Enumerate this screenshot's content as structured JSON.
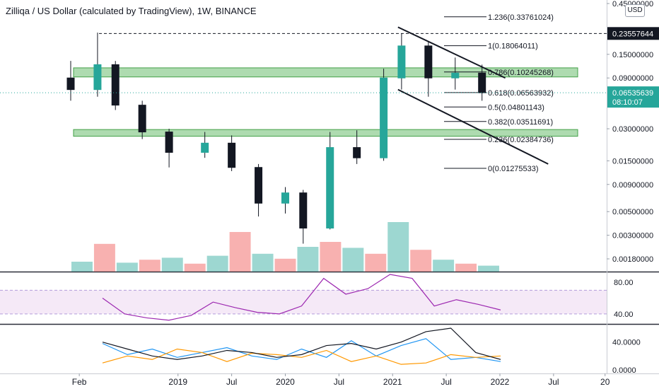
{
  "header": {
    "title": "Zilliqa / US Dollar (calculated by TradingView), 1W, BINANCE",
    "currency": "USD"
  },
  "chart_data": {
    "type": "candlestick",
    "price_axis": {
      "scale": "log",
      "ticks": [
        "0.45000000",
        "0.15000000",
        "0.09000000",
        "0.03000000",
        "0.01500000",
        "0.00900000",
        "0.00500000",
        "0.00300000",
        "0.00180000"
      ],
      "tick_values": [
        0.45,
        0.15,
        0.09,
        0.03,
        0.015,
        0.009,
        0.005,
        0.003,
        0.0018
      ]
    },
    "time_axis": {
      "labels": [
        "Feb",
        "2019",
        "Jul",
        "2020",
        "Jul",
        "2021",
        "Jul",
        "2022",
        "Jul",
        "20"
      ]
    },
    "price_labels": [
      {
        "text": "0.23557644",
        "value": 0.23557644,
        "style": "dark"
      },
      {
        "text": "0.06535639",
        "value": 0.06535639,
        "style": "green",
        "sub": "08:10:07"
      }
    ],
    "fibonacci": [
      {
        "label": "1.236(0.33761024)",
        "value": 0.33761024
      },
      {
        "label": "1(0.18064011)",
        "value": 0.18064011
      },
      {
        "label": "0.786(0.10245268)",
        "value": 0.10245268
      },
      {
        "label": "0.618(0.06563932)",
        "value": 0.06563932
      },
      {
        "label": "0.5(0.04801143)",
        "value": 0.04801143
      },
      {
        "label": "0.382(0.03511691)",
        "value": 0.03511691
      },
      {
        "label": "0.236(0.02384736)",
        "value": 0.02384736
      },
      {
        "label": "0(0.01275533)",
        "value": 0.01275533
      }
    ],
    "zones": [
      {
        "name": "resistance-zone",
        "low": 0.092,
        "high": 0.112
      },
      {
        "name": "support-zone",
        "low": 0.0255,
        "high": 0.0295
      }
    ],
    "candles": [
      {
        "date": "2018-01",
        "open": 0.09,
        "high": 0.13,
        "low": 0.055,
        "close": 0.07
      },
      {
        "date": "2018-04",
        "open": 0.07,
        "high": 0.24,
        "low": 0.06,
        "close": 0.12
      },
      {
        "date": "2018-06",
        "open": 0.12,
        "high": 0.13,
        "low": 0.045,
        "close": 0.05
      },
      {
        "date": "2018-09",
        "open": 0.05,
        "high": 0.055,
        "low": 0.024,
        "close": 0.028
      },
      {
        "date": "2018-12",
        "open": 0.028,
        "high": 0.03,
        "low": 0.013,
        "close": 0.018
      },
      {
        "date": "2019-04",
        "open": 0.018,
        "high": 0.028,
        "low": 0.016,
        "close": 0.022
      },
      {
        "date": "2019-07",
        "open": 0.022,
        "high": 0.026,
        "low": 0.012,
        "close": 0.013
      },
      {
        "date": "2019-10",
        "open": 0.013,
        "high": 0.014,
        "low": 0.0045,
        "close": 0.006
      },
      {
        "date": "2020-01",
        "open": 0.006,
        "high": 0.0085,
        "low": 0.0048,
        "close": 0.0075
      },
      {
        "date": "2020-03",
        "open": 0.0075,
        "high": 0.008,
        "low": 0.0025,
        "close": 0.0035
      },
      {
        "date": "2020-06",
        "open": 0.0035,
        "high": 0.028,
        "low": 0.0034,
        "close": 0.02
      },
      {
        "date": "2020-09",
        "open": 0.02,
        "high": 0.029,
        "low": 0.014,
        "close": 0.016
      },
      {
        "date": "2020-12",
        "open": 0.016,
        "high": 0.11,
        "low": 0.015,
        "close": 0.09
      },
      {
        "date": "2021-02",
        "open": 0.09,
        "high": 0.2356,
        "low": 0.07,
        "close": 0.18
      },
      {
        "date": "2021-05",
        "open": 0.18,
        "high": 0.2,
        "low": 0.06,
        "close": 0.09
      },
      {
        "date": "2021-08",
        "open": 0.09,
        "high": 0.14,
        "low": 0.07,
        "close": 0.1
      },
      {
        "date": "2021-11",
        "open": 0.1,
        "high": 0.12,
        "low": 0.055,
        "close": 0.0654
      }
    ],
    "volume_scale": "relative",
    "volume": [
      10,
      28,
      9,
      12,
      14,
      8,
      16,
      40,
      18,
      13,
      25,
      30,
      24,
      18,
      50,
      22,
      12,
      8,
      6
    ],
    "rsi": {
      "ticks": [
        "80.00",
        "40.00"
      ],
      "tick_values": [
        80,
        40
      ],
      "band": [
        40,
        70
      ],
      "values": [
        60,
        40,
        35,
        32,
        38,
        55,
        48,
        42,
        40,
        50,
        85,
        65,
        72,
        90,
        85,
        50,
        58,
        52,
        45
      ]
    },
    "dmi": {
      "ticks": [
        "40.0000",
        "0.0000"
      ],
      "tick_values": [
        40,
        0
      ],
      "series": [
        {
          "color": "#2196f3",
          "values": [
            38,
            22,
            30,
            18,
            25,
            32,
            20,
            15,
            30,
            18,
            42,
            20,
            35,
            45,
            15,
            18,
            12
          ]
        },
        {
          "color": "#ff9800",
          "values": [
            10,
            20,
            15,
            30,
            25,
            12,
            24,
            22,
            18,
            28,
            12,
            20,
            8,
            10,
            22,
            18,
            20
          ]
        },
        {
          "color": "#131722",
          "values": [
            40,
            30,
            20,
            15,
            20,
            28,
            25,
            18,
            22,
            35,
            38,
            30,
            40,
            55,
            60,
            25,
            15
          ]
        }
      ]
    }
  }
}
